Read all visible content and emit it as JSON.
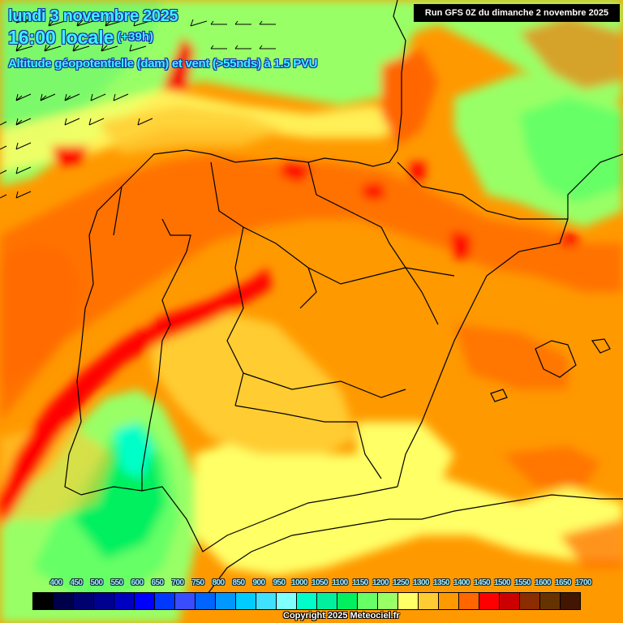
{
  "header": {
    "date": "lundi 3 novembre 2025",
    "time": "16:00 locale",
    "lead_time": "(+39h)",
    "subtitle": "Altitude géopotentielle (dam) et vent (>55nds) à 1.5 PVU",
    "run_info": "Run GFS 0Z du dimanche 2 novembre 2025"
  },
  "footer": {
    "copyright": "Copyright 2025 Meteociel.fr"
  },
  "legend": {
    "labels": [
      "400",
      "450",
      "500",
      "550",
      "600",
      "650",
      "700",
      "750",
      "800",
      "850",
      "900",
      "950",
      "1000",
      "1050",
      "1100",
      "1150",
      "1200",
      "1250",
      "1300",
      "1350",
      "1400",
      "1450",
      "1500",
      "1550",
      "1600",
      "1650",
      "1700"
    ],
    "colors": [
      "#000000",
      "#00004a",
      "#00006e",
      "#000090",
      "#0000c0",
      "#0000ff",
      "#0038ff",
      "#3a4cff",
      "#0064ff",
      "#0098ff",
      "#00ccff",
      "#40e0ff",
      "#80ffff",
      "#00ffc8",
      "#00f0a0",
      "#00f060",
      "#66ff66",
      "#99ff66",
      "#ffff66",
      "#ffcc33",
      "#ff9900",
      "#ff6600",
      "#ff0000",
      "#cc0000",
      "#8b2d00",
      "#663300",
      "#421600"
    ]
  },
  "map": {
    "region": "Iberian Peninsula",
    "palette": {
      "sea_low": "#99ff66",
      "green": "#66ff66",
      "bright_green": "#00f060",
      "cyan": "#00ffc8",
      "yellow": "#ffff66",
      "light_orange": "#ffcc33",
      "orange": "#ff9900",
      "dark_orange": "#ff6600",
      "red": "#ff0000",
      "dark_red": "#cc0000",
      "coastline": "#000000"
    },
    "wind_barb_color": "#000000"
  }
}
